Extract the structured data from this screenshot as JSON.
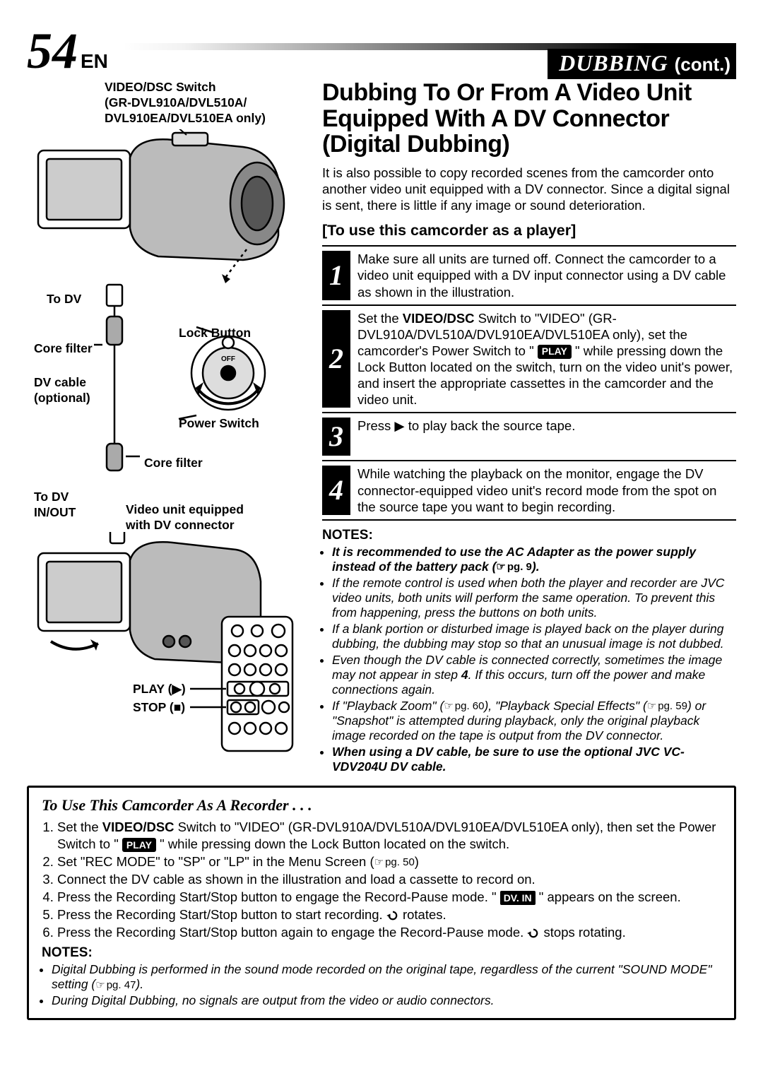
{
  "page": {
    "number": "54",
    "lang": "EN"
  },
  "section": {
    "title": "DUBBING",
    "cont": "(cont.)"
  },
  "diagram": {
    "switch_label": "VIDEO/DSC Switch\n(GR-DVL910A/DVL510A/\nDVL910EA/DVL510EA only)",
    "to_dv": "To DV",
    "core_filter": "Core filter",
    "dv_cable": "DV cable\n(optional)",
    "lock_button": "Lock Button",
    "power_switch": "Power Switch",
    "core_filter2": "Core filter",
    "to_dv_inout": "To DV\nIN/OUT",
    "video_unit": "Video unit equipped\nwith DV connector",
    "play": "PLAY (▶)",
    "stop": "STOP (■)"
  },
  "heading": "Dubbing To Or From A Video Unit Equipped With A DV Connector (Digital Dubbing)",
  "intro": "It is also possible to copy recorded scenes from the camcorder onto another video unit equipped with a DV connector. Since a digital signal is sent, there is little if any image or sound deterioration.",
  "sub_heading": "[To use this camcorder as a player]",
  "steps": [
    "Make sure all units are turned off. Connect the camcorder to a video unit equipped with a DV input connector using a DV cable as shown in the illustration.",
    "Set the <b>VIDEO/DSC</b> Switch to \"VIDEO\" (GR-DVL910A/DVL510A/DVL910EA/DVL510EA only), set the camcorder's Power Switch to \" <span class=\"play-badge\">PLAY</span> \" while pressing down the Lock Button located on the switch, turn on the video unit's power, and insert the appropriate cassettes in the camcorder and the video unit.",
    "Press ▶ to play back the source tape.",
    "While watching the playback on the monitor, engage the DV connector-equipped video unit's record mode from the spot on the source tape you want to begin recording."
  ],
  "notes_heading": "NOTES:",
  "notes": [
    {
      "bold": true,
      "text": "It is recommended to use the AC Adapter as the power supply instead of the battery pack (<span class=\"page-ref\">pg. 9</span>)."
    },
    {
      "bold": false,
      "text": "If the remote control is used when both the player and recorder are JVC video units, both units will perform the same operation. To prevent this from happening, press the buttons on both units."
    },
    {
      "bold": false,
      "text": "If a blank portion or disturbed image is played back on the player during dubbing, the dubbing may stop so that an unusual image is not dubbed."
    },
    {
      "bold": false,
      "text": "Even though the DV cable is connected correctly, sometimes the image may not appear in step <b>4</b>. If this occurs, turn off the power and make connections again."
    },
    {
      "bold": false,
      "text": "If \"Playback Zoom\" (<span class=\"page-ref\">pg. 60</span>), \"Playback Special Effects\" (<span class=\"page-ref\">pg. 59</span>) or \"Snapshot\" is attempted during playback, only the original playback image recorded on the tape is output from the DV connector."
    },
    {
      "bold": true,
      "text": "When using a DV cable, be sure to use the optional JVC VC-VDV204U DV cable."
    }
  ],
  "recorder": {
    "heading": "To Use This Camcorder As A Recorder . . .",
    "steps": [
      "Set the <b>VIDEO/DSC</b> Switch to \"VIDEO\" (GR-DVL910A/DVL510A/DVL910EA/DVL510EA only), then set the Power Switch to \" <span class=\"play-badge\">PLAY</span> \" while pressing down the Lock Button located on the switch.",
      "Set \"REC MODE\" to \"SP\" or \"LP\" in the Menu Screen (<span class=\"page-ref\" style=\"font-style:normal\">pg. 50</span>)",
      "Connect the DV cable as shown in the illustration and load a cassette to record on.",
      "Press the Recording Start/Stop button to engage the Record-Pause mode. \" <span class=\"dvin-badge\">DV. IN</span> \" appears on the screen.",
      "Press the Recording Start/Stop button to start recording. <svg class=\"rotate-icon\" viewBox=\"0 0 20 16\"><path d=\"M10 2 A6 6 0 1 1 4 8\" fill=\"none\" stroke=\"#000\" stroke-width=\"2.5\"/><path d=\"M0 8 L6 5 L6 11 Z\"/></svg> rotates.",
      "Press the Recording Start/Stop button again to engage the Record-Pause mode. <svg class=\"rotate-icon\" viewBox=\"0 0 20 16\"><path d=\"M10 2 A6 6 0 1 1 4 8\" fill=\"none\" stroke=\"#000\" stroke-width=\"2.5\"/><path d=\"M0 8 L6 5 L6 11 Z\"/></svg> stops rotating."
    ],
    "notes_heading": "NOTES:",
    "notes": [
      "Digital Dubbing is performed in the sound mode recorded on the original tape, regardless of the current \"SOUND MODE\" setting (<span class=\"page-ref\">pg. 47</span>).",
      "During Digital Dubbing, no signals are output from the video or audio connectors."
    ]
  }
}
